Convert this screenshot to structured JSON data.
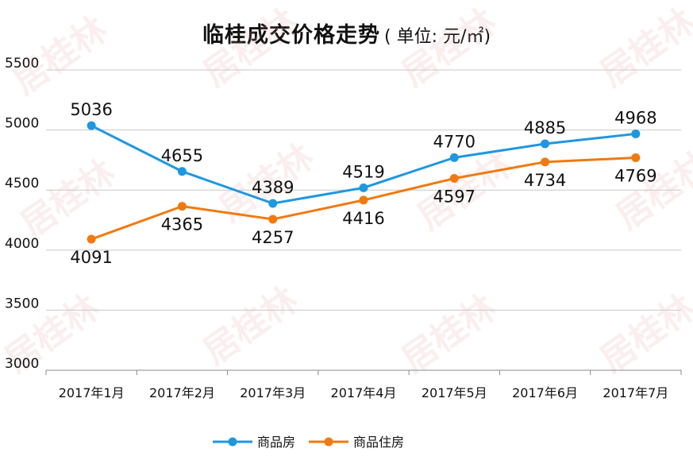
{
  "watermark": {
    "text": "居桂林"
  },
  "chart_data": {
    "type": "line",
    "title": "临桂成交价格走势",
    "unit": "( 单位: 元/㎡)",
    "categories": [
      "2017年1月",
      "2017年2月",
      "2017年3月",
      "2017年4月",
      "2017年5月",
      "2017年6月",
      "2017年7月"
    ],
    "ylim": [
      3000,
      5500
    ],
    "yticks": [
      3000,
      3500,
      4000,
      4500,
      5000,
      5500
    ],
    "grid": true,
    "legend_position": "bottom",
    "series": [
      {
        "name": "商品房",
        "color": "#1f97e0",
        "values": [
          5036,
          4655,
          4389,
          4519,
          4770,
          4885,
          4968
        ],
        "label_side": [
          "above",
          "above",
          "above",
          "above",
          "above",
          "above",
          "above"
        ]
      },
      {
        "name": "商品住房",
        "color": "#f07a10",
        "values": [
          4091,
          4365,
          4257,
          4416,
          4597,
          4734,
          4769
        ],
        "label_side": [
          "below",
          "below",
          "below",
          "below",
          "below",
          "below",
          "below"
        ]
      }
    ]
  }
}
